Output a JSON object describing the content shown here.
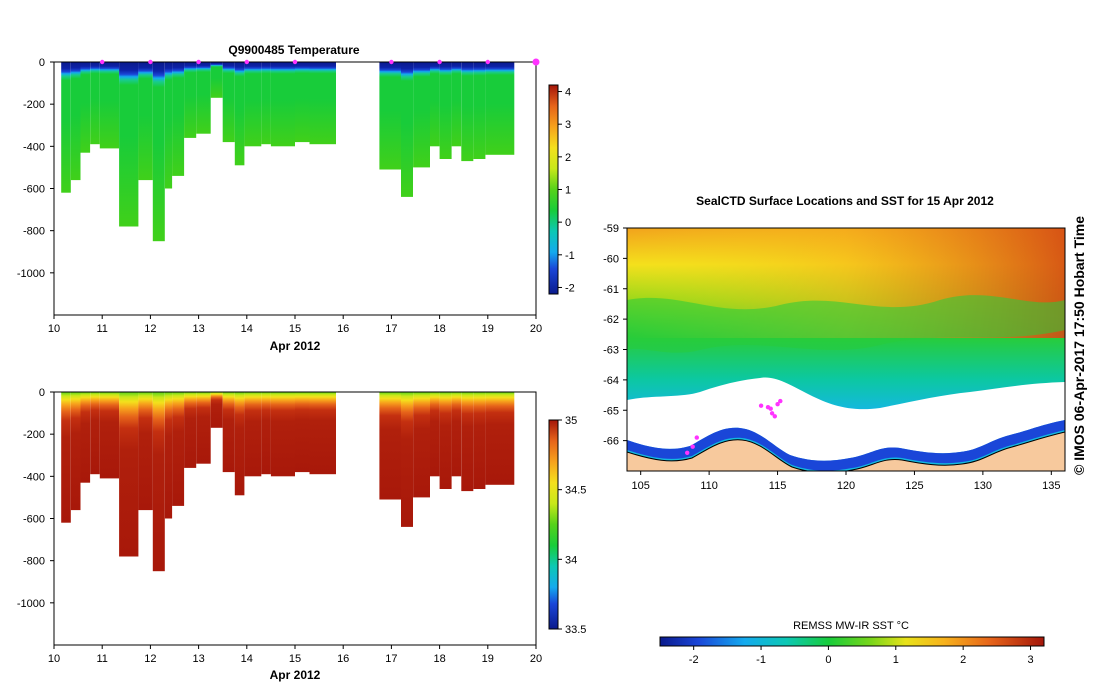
{
  "chart_data": [
    {
      "id": "temperature_section",
      "type": "heatmap",
      "title": "Q9900485  Temperature",
      "xlabel": "Apr 2012",
      "ylabel": "",
      "xlim": [
        10,
        20
      ],
      "ylim": [
        -1200,
        0
      ],
      "xticks": [
        "10",
        "11",
        "12",
        "13",
        "14",
        "15",
        "16",
        "17",
        "18",
        "19",
        "20"
      ],
      "yticks": [
        "0",
        "-200",
        "-400",
        "-600",
        "-800",
        "-1000"
      ],
      "colorbar": {
        "min": -2.2,
        "max": 4.2,
        "ticks": [
          "4",
          "3",
          "2",
          "1",
          "0",
          "-1",
          "-2"
        ],
        "tick_values": [
          4,
          3,
          2,
          1,
          0,
          -1,
          -2
        ]
      },
      "surface_markers_days": [
        11,
        12,
        13,
        14,
        15,
        17,
        18,
        19,
        20
      ],
      "profiles": [
        {
          "start": 10.15,
          "end": 10.35,
          "max_depth": 620
        },
        {
          "start": 10.35,
          "end": 10.55,
          "max_depth": 560
        },
        {
          "start": 10.55,
          "end": 10.75,
          "max_depth": 430
        },
        {
          "start": 10.75,
          "end": 10.95,
          "max_depth": 390
        },
        {
          "start": 10.95,
          "end": 11.35,
          "max_depth": 410
        },
        {
          "start": 11.35,
          "end": 11.75,
          "max_depth": 780
        },
        {
          "start": 11.75,
          "end": 12.05,
          "max_depth": 560
        },
        {
          "start": 12.05,
          "end": 12.3,
          "max_depth": 850
        },
        {
          "start": 12.3,
          "end": 12.45,
          "max_depth": 600
        },
        {
          "start": 12.45,
          "end": 12.7,
          "max_depth": 540
        },
        {
          "start": 12.7,
          "end": 12.95,
          "max_depth": 360
        },
        {
          "start": 12.95,
          "end": 13.25,
          "max_depth": 340
        },
        {
          "start": 13.25,
          "end": 13.5,
          "max_depth": 170
        },
        {
          "start": 13.5,
          "end": 13.75,
          "max_depth": 380
        },
        {
          "start": 13.75,
          "end": 13.95,
          "max_depth": 490
        },
        {
          "start": 13.95,
          "end": 14.3,
          "max_depth": 400
        },
        {
          "start": 14.3,
          "end": 14.5,
          "max_depth": 390
        },
        {
          "start": 14.5,
          "end": 15.0,
          "max_depth": 400
        },
        {
          "start": 15.0,
          "end": 15.3,
          "max_depth": 380
        },
        {
          "start": 15.3,
          "end": 15.85,
          "max_depth": 390
        },
        {
          "start": 16.75,
          "end": 17.2,
          "max_depth": 510
        },
        {
          "start": 17.2,
          "end": 17.45,
          "max_depth": 640
        },
        {
          "start": 17.45,
          "end": 17.8,
          "max_depth": 500
        },
        {
          "start": 17.8,
          "end": 18.0,
          "max_depth": 400
        },
        {
          "start": 18.0,
          "end": 18.25,
          "max_depth": 460
        },
        {
          "start": 18.25,
          "end": 18.45,
          "max_depth": 400
        },
        {
          "start": 18.45,
          "end": 18.7,
          "max_depth": 470
        },
        {
          "start": 18.7,
          "end": 18.95,
          "max_depth": 460
        },
        {
          "start": 18.95,
          "end": 19.55,
          "max_depth": 440
        }
      ]
    },
    {
      "id": "salinity_section",
      "type": "heatmap",
      "title": "",
      "xlabel": "Apr 2012",
      "ylabel": "",
      "xlim": [
        10,
        20
      ],
      "ylim": [
        -1200,
        0
      ],
      "xticks": [
        "10",
        "11",
        "12",
        "13",
        "14",
        "15",
        "16",
        "17",
        "18",
        "19",
        "20"
      ],
      "yticks": [
        "0",
        "-200",
        "-400",
        "-600",
        "-800",
        "-1000"
      ],
      "colorbar": {
        "min": 33.5,
        "max": 35.0,
        "ticks": [
          "35",
          "34.5",
          "34",
          "33.5"
        ],
        "tick_values": [
          35,
          34.5,
          34,
          33.5
        ]
      }
    },
    {
      "id": "sst_map",
      "type": "heatmap",
      "title": "SealCTD Surface Locations and SST for 15 Apr 2012",
      "xlabel": "",
      "ylabel": "",
      "xlim": [
        104,
        136
      ],
      "ylim": [
        -67,
        -59
      ],
      "xticks": [
        "105",
        "110",
        "115",
        "120",
        "125",
        "130",
        "135"
      ],
      "yticks": [
        "-59",
        "-60",
        "-61",
        "-62",
        "-63",
        "-64",
        "-65",
        "-66"
      ],
      "colorbar": {
        "label": "REMSS MW-IR SST °C",
        "min": -2.5,
        "max": 3.2,
        "ticks": [
          "-2",
          "-1",
          "0",
          "1",
          "2",
          "3"
        ],
        "tick_values": [
          -2,
          -1,
          0,
          1,
          2,
          3
        ]
      },
      "seal_locations": [
        {
          "lon": 114.3,
          "lat": -64.9
        },
        {
          "lon": 114.5,
          "lat": -64.95
        },
        {
          "lon": 114.6,
          "lat": -65.1
        },
        {
          "lon": 114.8,
          "lat": -65.2
        },
        {
          "lon": 115.0,
          "lat": -64.8
        },
        {
          "lon": 115.2,
          "lat": -64.7
        },
        {
          "lon": 113.8,
          "lat": -64.85
        },
        {
          "lon": 108.8,
          "lat": -66.2
        },
        {
          "lon": 109.1,
          "lat": -65.9
        },
        {
          "lon": 108.4,
          "lat": -66.4
        }
      ]
    }
  ],
  "side_caption": "© IMOS 06-Apr-2017 17:50 Hobart Time",
  "colors": {
    "land": "#f7c99d",
    "ice": "#ffffff",
    "marker": "#ff33ff",
    "coast": "#000000"
  }
}
